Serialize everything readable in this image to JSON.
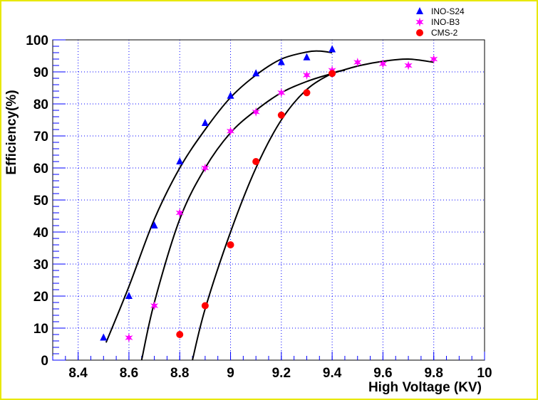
{
  "chart_data": {
    "type": "scatter",
    "xlabel": "High Voltage (KV)",
    "ylabel": "Efficiency(%)",
    "xlim": [
      8.3,
      10
    ],
    "ylim": [
      0,
      100
    ],
    "xticks": [
      "8.4",
      "8.6",
      "8.8",
      "9",
      "9.2",
      "9.4",
      "9.6",
      "9.8",
      "10"
    ],
    "xtick_values": [
      8.4,
      8.6,
      8.8,
      9.0,
      9.2,
      9.4,
      9.6,
      9.8,
      10.0
    ],
    "yticks": [
      "0",
      "10",
      "20",
      "30",
      "40",
      "50",
      "60",
      "70",
      "80",
      "90",
      "100"
    ],
    "ytick_values": [
      0,
      10,
      20,
      30,
      40,
      50,
      60,
      70,
      80,
      90,
      100
    ],
    "grid": true,
    "legend_position": "top-right",
    "series": [
      {
        "name": "INO-S24",
        "marker": "triangle",
        "color": "#0000ff",
        "x": [
          8.5,
          8.6,
          8.7,
          8.8,
          8.9,
          9.0,
          9.1,
          9.2,
          9.3,
          9.4
        ],
        "y": [
          7,
          20,
          42,
          62,
          74,
          82.5,
          89.5,
          93,
          94.5,
          97
        ],
        "fit": {
          "x": [
            8.51,
            8.6,
            8.7,
            8.8,
            8.9,
            9.0,
            9.1,
            9.2,
            9.3,
            9.35,
            9.4
          ],
          "y": [
            5.5,
            23,
            44,
            60,
            72,
            82,
            89,
            94,
            96.2,
            96.5,
            96
          ]
        }
      },
      {
        "name": "INO-B3",
        "marker": "star",
        "color": "#ff00ff",
        "x": [
          8.6,
          8.7,
          8.8,
          8.9,
          9.0,
          9.1,
          9.2,
          9.3,
          9.4,
          9.5,
          9.6,
          9.7,
          9.8
        ],
        "y": [
          7,
          17,
          46,
          60,
          71.5,
          77.5,
          83.5,
          89,
          90.5,
          93,
          92.5,
          92,
          94
        ],
        "fit": {
          "x": [
            8.65,
            8.7,
            8.8,
            8.9,
            9.0,
            9.1,
            9.2,
            9.3,
            9.4,
            9.5,
            9.6,
            9.7,
            9.8
          ],
          "y": [
            0,
            18,
            44,
            60,
            71,
            78,
            83.5,
            87,
            89.5,
            91.8,
            93.3,
            94,
            93
          ]
        }
      },
      {
        "name": "CMS-2",
        "marker": "circle",
        "color": "#ff0000",
        "x": [
          8.8,
          8.9,
          9.0,
          9.1,
          9.2,
          9.3,
          9.4
        ],
        "y": [
          8,
          17,
          36,
          62,
          76.5,
          83.5,
          89.5
        ],
        "fit": {
          "x": [
            8.85,
            8.9,
            9.0,
            9.1,
            9.2,
            9.3,
            9.4,
            9.45
          ],
          "y": [
            0,
            16,
            40,
            60,
            75,
            84.5,
            89.5,
            90.5
          ]
        }
      }
    ]
  }
}
